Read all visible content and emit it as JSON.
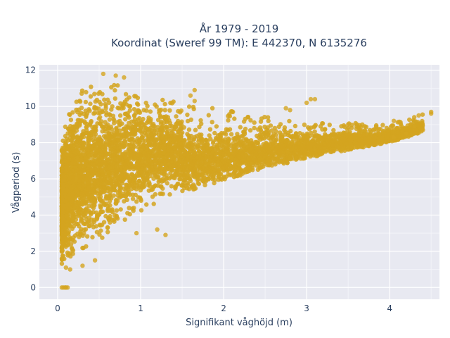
{
  "chart_data": {
    "type": "scatter",
    "title_line1": "År 1979 - 2019",
    "title_line2": "Koordinat (Sweref 99 TM): E 442370, N 6135276",
    "xlabel": "Signifikant våghöjd (m)",
    "ylabel": "Vågperiod (s)",
    "xlim": [
      -0.22,
      4.6
    ],
    "ylim": [
      -0.65,
      12.3
    ],
    "x_ticks": [
      0,
      1,
      2,
      3,
      4
    ],
    "y_ticks": [
      0,
      2,
      4,
      6,
      8,
      10,
      12
    ],
    "grid": true,
    "legend": "none",
    "marker_color": "#d4a520",
    "plot_background": "#e8e9f1",
    "point_cloud_description_boundary": {
      "lower_edge": [
        [
          0.05,
          1.2
        ],
        [
          0.1,
          1.4
        ],
        [
          0.2,
          1.8
        ],
        [
          0.4,
          2.3
        ],
        [
          0.6,
          2.8
        ],
        [
          0.8,
          3.5
        ],
        [
          1.0,
          4.2
        ],
        [
          1.2,
          4.6
        ],
        [
          1.5,
          5.2
        ],
        [
          2.0,
          5.9
        ],
        [
          2.5,
          6.6
        ],
        [
          3.0,
          7.1
        ],
        [
          3.5,
          7.6
        ],
        [
          4.0,
          8.0
        ],
        [
          4.4,
          8.6
        ]
      ],
      "upper_edge": [
        [
          0.05,
          8.0
        ],
        [
          0.1,
          9.2
        ],
        [
          0.2,
          10.6
        ],
        [
          0.4,
          11.2
        ],
        [
          0.6,
          11.5
        ],
        [
          0.8,
          11.0
        ],
        [
          1.0,
          10.5
        ],
        [
          1.2,
          10.5
        ],
        [
          1.5,
          10.2
        ],
        [
          2.0,
          9.8
        ],
        [
          2.5,
          9.5
        ],
        [
          3.0,
          9.2
        ],
        [
          3.5,
          9.1
        ],
        [
          4.0,
          9.0
        ],
        [
          4.5,
          9.7
        ]
      ]
    },
    "outlier_points": [
      [
        0.05,
        0.0
      ],
      [
        0.07,
        0.0
      ],
      [
        0.09,
        0.0
      ],
      [
        0.1,
        0.0
      ],
      [
        0.12,
        0.0
      ],
      [
        0.7,
        11.7
      ],
      [
        0.8,
        11.6
      ],
      [
        0.55,
        11.8
      ],
      [
        1.65,
        10.9
      ],
      [
        1.6,
        10.6
      ],
      [
        1.65,
        10.3
      ],
      [
        3.05,
        10.4
      ],
      [
        3.1,
        10.4
      ],
      [
        3.0,
        10.2
      ],
      [
        2.75,
        9.9
      ],
      [
        2.8,
        9.8
      ],
      [
        3.5,
        9.0
      ],
      [
        4.05,
        9.2
      ],
      [
        4.35,
        9.5
      ],
      [
        4.5,
        9.6
      ],
      [
        4.5,
        9.7
      ],
      [
        4.4,
        8.7
      ],
      [
        4.3,
        8.9
      ],
      [
        4.25,
        9.0
      ],
      [
        4.1,
        8.8
      ],
      [
        4.2,
        8.5
      ],
      [
        4.05,
        8.3
      ],
      [
        1.2,
        3.2
      ],
      [
        0.45,
        1.5
      ],
      [
        0.3,
        1.2
      ],
      [
        0.15,
        1.0
      ],
      [
        0.1,
        1.1
      ],
      [
        1.3,
        2.9
      ],
      [
        0.95,
        3.0
      ]
    ]
  }
}
